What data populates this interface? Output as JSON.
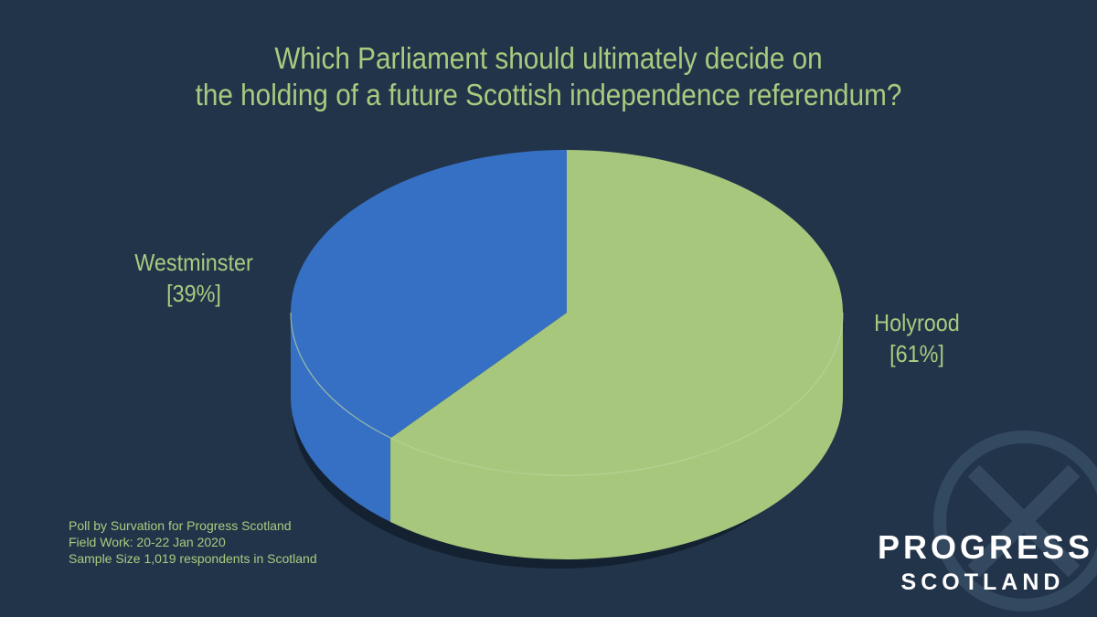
{
  "title": {
    "line1": "Which Parliament should ultimately decide on",
    "line2": "the holding of a future Scottish independence referendum?"
  },
  "chart_data": {
    "type": "pie",
    "title": "Which Parliament should ultimately decide on the holding of a future Scottish independence referendum?",
    "categories": [
      "Holyrood",
      "Westminster"
    ],
    "values": [
      61,
      39
    ],
    "value_labels": [
      "[61%]",
      "[39%]"
    ],
    "colors": [
      "#a6c77c",
      "#3670c4"
    ],
    "side_colors": [
      "#a6c77c",
      "#3670c4"
    ],
    "style": "3d",
    "legend": "none"
  },
  "source": {
    "line1": "Poll by Survation for Progress Scotland",
    "line2": "Field Work: 20-22 Jan 2020",
    "line3": "Sample Size 1,019 respondents in Scotland"
  },
  "logo": {
    "line1": "PROGRESS",
    "line2": "SCOTLAND"
  },
  "colors": {
    "background": "#22344a",
    "text_accent": "#a9cb7f"
  }
}
